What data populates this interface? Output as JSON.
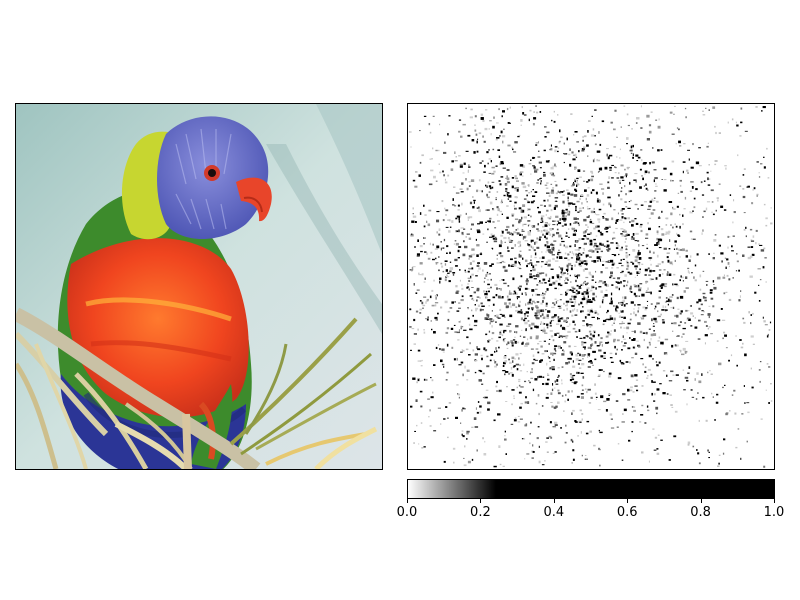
{
  "chart_data": [
    {
      "type": "image",
      "subject": "rainbow lorikeet perched on dried seed pods",
      "colors": {
        "head": "#6c74c8",
        "nape": "#c9d63a",
        "neck": "#3f8f2f",
        "breast": "#f04a25",
        "belly": "#2b3596",
        "beak": "#e8452a",
        "background": "#c8dcd8",
        "branch": "#d9cfa0"
      }
    },
    {
      "type": "heatmap",
      "description_key": "saliency map",
      "cmap": "gray_r",
      "clim": [
        0.0,
        1.0
      ],
      "colorbar": {
        "ticks": [
          0.0,
          0.2,
          0.4,
          0.6,
          0.8,
          1.0
        ],
        "tick_labels": [
          "0.0",
          "0.2",
          "0.4",
          "0.6",
          "0.8",
          "1.0"
        ],
        "saturation_value": 0.24,
        "orientation": "horizontal",
        "placement": "bottom"
      },
      "hotspot_center": [
        0.42,
        0.46
      ],
      "hotspot_spread": 0.23
    }
  ]
}
